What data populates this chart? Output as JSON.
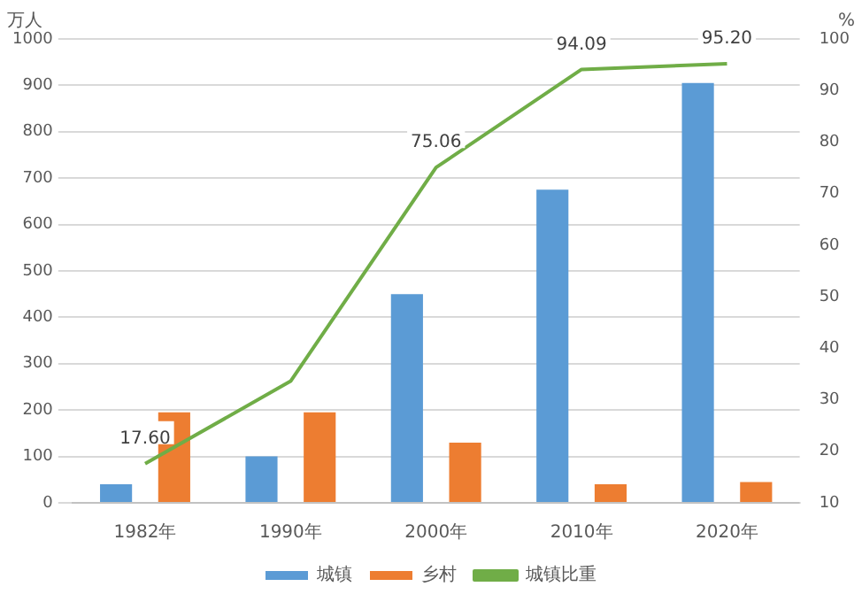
{
  "chart_data": {
    "type": "bar",
    "ylabel": "万人",
    "y2label": "%",
    "categories": [
      "1982年",
      "1990年",
      "2000年",
      "2010年",
      "2020年"
    ],
    "series": [
      {
        "name": "城镇",
        "color": "#5b9bd5",
        "values": [
          40,
          100,
          450,
          675,
          905
        ]
      },
      {
        "name": "乡村",
        "color": "#ed7d31",
        "values": [
          195,
          195,
          130,
          40,
          45
        ]
      },
      {
        "name": "城镇比重",
        "type": "line",
        "axis": "y2",
        "color": "#70ad47",
        "values": [
          17.6,
          33.6,
          75.06,
          94.09,
          95.2
        ],
        "value_labels": [
          "17.60",
          null,
          "75.06",
          "94.09",
          "95.20"
        ]
      }
    ],
    "ylim": [
      0,
      1000
    ],
    "yticks": [
      0,
      100,
      200,
      300,
      400,
      500,
      600,
      700,
      800,
      900,
      1000
    ],
    "y2lim": [
      10,
      100
    ],
    "y2ticks": [
      10,
      20,
      30,
      40,
      50,
      60,
      70,
      80,
      90,
      100
    ],
    "grid": "y",
    "legend": "bottom",
    "marker": "none"
  }
}
